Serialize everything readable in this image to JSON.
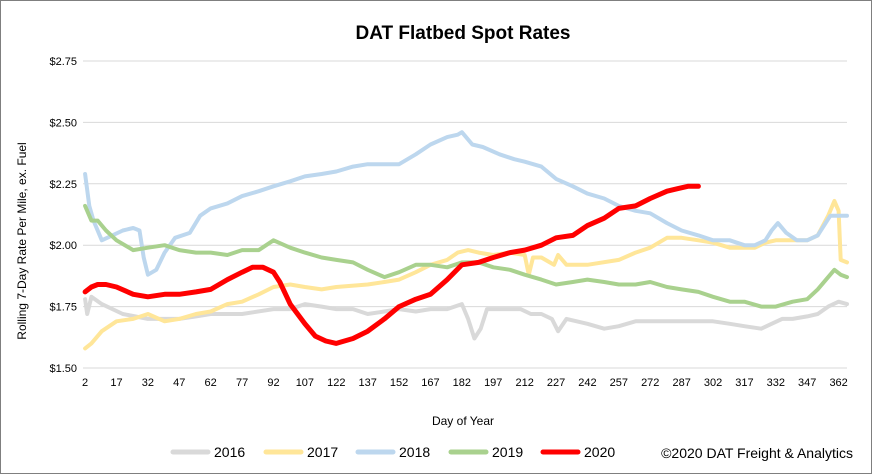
{
  "chart_data": {
    "type": "line",
    "title": "DAT Flatbed Spot Rates",
    "xlabel": "Day of Year",
    "ylabel": "Rolling 7-Day Rate Per Mile, ex. Fuel",
    "xlim": [
      1,
      366
    ],
    "ylim": [
      1.5,
      2.75
    ],
    "x_ticks": [
      2,
      17,
      32,
      47,
      62,
      77,
      92,
      107,
      122,
      137,
      152,
      167,
      182,
      197,
      212,
      227,
      242,
      257,
      272,
      287,
      302,
      317,
      332,
      347,
      362
    ],
    "y_ticks": [
      {
        "value": 1.5,
        "label": "$1.50"
      },
      {
        "value": 1.75,
        "label": "$1.75"
      },
      {
        "value": 2.0,
        "label": "$2.00"
      },
      {
        "value": 2.25,
        "label": "$2.25"
      },
      {
        "value": 2.5,
        "label": "$2.50"
      },
      {
        "value": 2.75,
        "label": "$2.75"
      }
    ],
    "grid": "horizontal",
    "legend_position": "bottom",
    "credit": "©2020 DAT Freight & Analytics",
    "series": [
      {
        "name": "2016",
        "color": "#d9d9d9",
        "width": 4,
        "points": [
          [
            2,
            1.78
          ],
          [
            3,
            1.72
          ],
          [
            5,
            1.79
          ],
          [
            10,
            1.76
          ],
          [
            20,
            1.72
          ],
          [
            32,
            1.7
          ],
          [
            40,
            1.7
          ],
          [
            47,
            1.7
          ],
          [
            55,
            1.71
          ],
          [
            62,
            1.72
          ],
          [
            77,
            1.72
          ],
          [
            92,
            1.74
          ],
          [
            100,
            1.74
          ],
          [
            107,
            1.76
          ],
          [
            115,
            1.75
          ],
          [
            122,
            1.74
          ],
          [
            130,
            1.74
          ],
          [
            137,
            1.72
          ],
          [
            145,
            1.73
          ],
          [
            152,
            1.74
          ],
          [
            160,
            1.73
          ],
          [
            167,
            1.74
          ],
          [
            175,
            1.74
          ],
          [
            182,
            1.76
          ],
          [
            185,
            1.7
          ],
          [
            188,
            1.62
          ],
          [
            191,
            1.66
          ],
          [
            194,
            1.74
          ],
          [
            200,
            1.74
          ],
          [
            210,
            1.74
          ],
          [
            215,
            1.72
          ],
          [
            220,
            1.72
          ],
          [
            225,
            1.7
          ],
          [
            228,
            1.65
          ],
          [
            232,
            1.7
          ],
          [
            242,
            1.68
          ],
          [
            250,
            1.66
          ],
          [
            257,
            1.67
          ],
          [
            265,
            1.69
          ],
          [
            272,
            1.69
          ],
          [
            287,
            1.69
          ],
          [
            302,
            1.69
          ],
          [
            310,
            1.68
          ],
          [
            317,
            1.67
          ],
          [
            325,
            1.66
          ],
          [
            330,
            1.68
          ],
          [
            335,
            1.7
          ],
          [
            340,
            1.7
          ],
          [
            347,
            1.71
          ],
          [
            352,
            1.72
          ],
          [
            357,
            1.75
          ],
          [
            362,
            1.77
          ],
          [
            366,
            1.76
          ]
        ]
      },
      {
        "name": "2017",
        "color": "#ffe699",
        "width": 4,
        "points": [
          [
            2,
            1.58
          ],
          [
            5,
            1.6
          ],
          [
            10,
            1.65
          ],
          [
            17,
            1.69
          ],
          [
            25,
            1.7
          ],
          [
            32,
            1.72
          ],
          [
            40,
            1.69
          ],
          [
            47,
            1.7
          ],
          [
            55,
            1.72
          ],
          [
            62,
            1.73
          ],
          [
            70,
            1.76
          ],
          [
            77,
            1.77
          ],
          [
            85,
            1.8
          ],
          [
            92,
            1.83
          ],
          [
            100,
            1.84
          ],
          [
            107,
            1.83
          ],
          [
            115,
            1.82
          ],
          [
            122,
            1.83
          ],
          [
            137,
            1.84
          ],
          [
            145,
            1.85
          ],
          [
            152,
            1.86
          ],
          [
            160,
            1.89
          ],
          [
            167,
            1.92
          ],
          [
            175,
            1.94
          ],
          [
            180,
            1.97
          ],
          [
            185,
            1.98
          ],
          [
            190,
            1.97
          ],
          [
            197,
            1.96
          ],
          [
            205,
            1.97
          ],
          [
            212,
            1.96
          ],
          [
            214,
            1.88
          ],
          [
            216,
            1.95
          ],
          [
            220,
            1.95
          ],
          [
            224,
            1.93
          ],
          [
            226,
            1.92
          ],
          [
            228,
            1.96
          ],
          [
            232,
            1.92
          ],
          [
            242,
            1.92
          ],
          [
            257,
            1.94
          ],
          [
            265,
            1.97
          ],
          [
            272,
            1.99
          ],
          [
            280,
            2.03
          ],
          [
            287,
            2.03
          ],
          [
            295,
            2.02
          ],
          [
            302,
            2.01
          ],
          [
            310,
            1.99
          ],
          [
            317,
            1.99
          ],
          [
            322,
            1.99
          ],
          [
            327,
            2.01
          ],
          [
            332,
            2.02
          ],
          [
            340,
            2.02
          ],
          [
            347,
            2.02
          ],
          [
            352,
            2.04
          ],
          [
            357,
            2.12
          ],
          [
            360,
            2.18
          ],
          [
            362,
            2.14
          ],
          [
            363,
            1.94
          ],
          [
            366,
            1.93
          ]
        ]
      },
      {
        "name": "2018",
        "color": "#bdd7ee",
        "width": 4,
        "points": [
          [
            2,
            2.29
          ],
          [
            4,
            2.16
          ],
          [
            6,
            2.1
          ],
          [
            10,
            2.02
          ],
          [
            15,
            2.04
          ],
          [
            20,
            2.06
          ],
          [
            25,
            2.07
          ],
          [
            28,
            2.06
          ],
          [
            30,
            1.95
          ],
          [
            32,
            1.88
          ],
          [
            36,
            1.9
          ],
          [
            40,
            1.97
          ],
          [
            45,
            2.03
          ],
          [
            52,
            2.05
          ],
          [
            57,
            2.12
          ],
          [
            62,
            2.15
          ],
          [
            70,
            2.17
          ],
          [
            77,
            2.2
          ],
          [
            85,
            2.22
          ],
          [
            92,
            2.24
          ],
          [
            100,
            2.26
          ],
          [
            107,
            2.28
          ],
          [
            115,
            2.29
          ],
          [
            122,
            2.3
          ],
          [
            130,
            2.32
          ],
          [
            137,
            2.33
          ],
          [
            145,
            2.33
          ],
          [
            152,
            2.33
          ],
          [
            160,
            2.37
          ],
          [
            167,
            2.41
          ],
          [
            175,
            2.44
          ],
          [
            180,
            2.45
          ],
          [
            182,
            2.46
          ],
          [
            187,
            2.41
          ],
          [
            192,
            2.4
          ],
          [
            200,
            2.37
          ],
          [
            207,
            2.35
          ],
          [
            212,
            2.34
          ],
          [
            220,
            2.32
          ],
          [
            227,
            2.27
          ],
          [
            235,
            2.24
          ],
          [
            242,
            2.21
          ],
          [
            250,
            2.19
          ],
          [
            257,
            2.16
          ],
          [
            265,
            2.14
          ],
          [
            272,
            2.13
          ],
          [
            280,
            2.09
          ],
          [
            287,
            2.06
          ],
          [
            295,
            2.04
          ],
          [
            302,
            2.02
          ],
          [
            310,
            2.02
          ],
          [
            317,
            2.0
          ],
          [
            322,
            2.0
          ],
          [
            327,
            2.02
          ],
          [
            330,
            2.06
          ],
          [
            333,
            2.09
          ],
          [
            337,
            2.05
          ],
          [
            342,
            2.02
          ],
          [
            347,
            2.02
          ],
          [
            352,
            2.04
          ],
          [
            355,
            2.08
          ],
          [
            358,
            2.12
          ],
          [
            362,
            2.12
          ],
          [
            366,
            2.12
          ]
        ]
      },
      {
        "name": "2019",
        "color": "#a9d18e",
        "width": 4,
        "points": [
          [
            2,
            2.16
          ],
          [
            5,
            2.1
          ],
          [
            8,
            2.1
          ],
          [
            12,
            2.06
          ],
          [
            17,
            2.02
          ],
          [
            25,
            1.98
          ],
          [
            32,
            1.99
          ],
          [
            40,
            2.0
          ],
          [
            47,
            1.98
          ],
          [
            55,
            1.97
          ],
          [
            62,
            1.97
          ],
          [
            70,
            1.96
          ],
          [
            77,
            1.98
          ],
          [
            85,
            1.98
          ],
          [
            92,
            2.02
          ],
          [
            100,
            1.99
          ],
          [
            107,
            1.97
          ],
          [
            115,
            1.95
          ],
          [
            122,
            1.94
          ],
          [
            130,
            1.93
          ],
          [
            137,
            1.9
          ],
          [
            145,
            1.87
          ],
          [
            152,
            1.89
          ],
          [
            160,
            1.92
          ],
          [
            167,
            1.92
          ],
          [
            175,
            1.91
          ],
          [
            182,
            1.93
          ],
          [
            190,
            1.93
          ],
          [
            197,
            1.91
          ],
          [
            205,
            1.9
          ],
          [
            212,
            1.88
          ],
          [
            220,
            1.86
          ],
          [
            227,
            1.84
          ],
          [
            235,
            1.85
          ],
          [
            242,
            1.86
          ],
          [
            250,
            1.85
          ],
          [
            257,
            1.84
          ],
          [
            265,
            1.84
          ],
          [
            272,
            1.85
          ],
          [
            280,
            1.83
          ],
          [
            287,
            1.82
          ],
          [
            295,
            1.81
          ],
          [
            302,
            1.79
          ],
          [
            310,
            1.77
          ],
          [
            317,
            1.77
          ],
          [
            325,
            1.75
          ],
          [
            332,
            1.75
          ],
          [
            340,
            1.77
          ],
          [
            347,
            1.78
          ],
          [
            352,
            1.82
          ],
          [
            357,
            1.87
          ],
          [
            360,
            1.9
          ],
          [
            363,
            1.88
          ],
          [
            366,
            1.87
          ]
        ]
      },
      {
        "name": "2020",
        "color": "#ff0000",
        "width": 5,
        "points": [
          [
            2,
            1.81
          ],
          [
            5,
            1.83
          ],
          [
            8,
            1.84
          ],
          [
            12,
            1.84
          ],
          [
            17,
            1.83
          ],
          [
            25,
            1.8
          ],
          [
            32,
            1.79
          ],
          [
            40,
            1.8
          ],
          [
            47,
            1.8
          ],
          [
            55,
            1.81
          ],
          [
            62,
            1.82
          ],
          [
            70,
            1.86
          ],
          [
            77,
            1.89
          ],
          [
            82,
            1.91
          ],
          [
            87,
            1.91
          ],
          [
            92,
            1.89
          ],
          [
            95,
            1.85
          ],
          [
            100,
            1.76
          ],
          [
            107,
            1.68
          ],
          [
            112,
            1.63
          ],
          [
            117,
            1.61
          ],
          [
            122,
            1.6
          ],
          [
            130,
            1.62
          ],
          [
            137,
            1.65
          ],
          [
            145,
            1.7
          ],
          [
            152,
            1.75
          ],
          [
            160,
            1.78
          ],
          [
            167,
            1.8
          ],
          [
            175,
            1.86
          ],
          [
            182,
            1.92
          ],
          [
            190,
            1.93
          ],
          [
            197,
            1.95
          ],
          [
            205,
            1.97
          ],
          [
            212,
            1.98
          ],
          [
            220,
            2.0
          ],
          [
            227,
            2.03
          ],
          [
            235,
            2.04
          ],
          [
            242,
            2.08
          ],
          [
            250,
            2.11
          ],
          [
            257,
            2.15
          ],
          [
            265,
            2.16
          ],
          [
            272,
            2.19
          ],
          [
            280,
            2.22
          ],
          [
            285,
            2.23
          ],
          [
            290,
            2.24
          ],
          [
            295,
            2.24
          ]
        ]
      }
    ]
  }
}
